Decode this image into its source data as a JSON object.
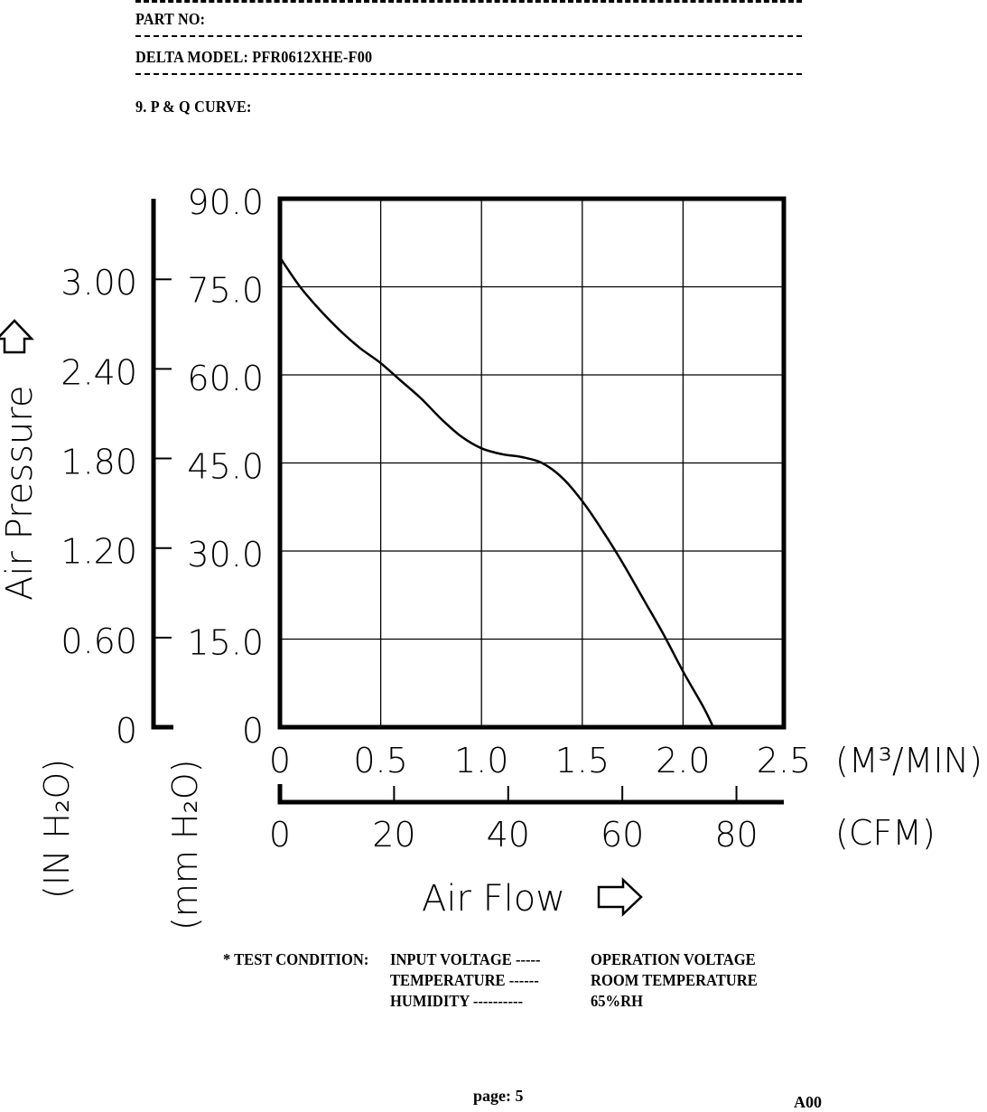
{
  "header": {
    "part_no_label": "PART NO:",
    "model_label": "DELTA MODEL: PFR0612XHE-F00",
    "section_title": "9. P & Q CURVE:"
  },
  "chart_data": {
    "type": "line",
    "title": "",
    "series": [
      {
        "name": "",
        "x": [
          0.0,
          0.1,
          0.2,
          0.3,
          0.4,
          0.5,
          0.6,
          0.7,
          0.8,
          0.9,
          1.0,
          1.1,
          1.2,
          1.3,
          1.4,
          1.5,
          1.6,
          1.7,
          1.8,
          1.9,
          2.0,
          2.1,
          2.15
        ],
        "y": [
          80.0,
          75.0,
          71.0,
          67.5,
          64.5,
          62.0,
          59.0,
          56.0,
          52.5,
          49.5,
          47.5,
          46.5,
          46.0,
          45.0,
          42.5,
          38.5,
          33.5,
          28.0,
          22.0,
          16.0,
          9.5,
          3.5,
          0.0
        ]
      }
    ],
    "x_axis": {
      "label": "Air Flow",
      "unit": "(M³/MIN)",
      "range": [
        0,
        2.5
      ],
      "ticks": [
        "0",
        "0.5",
        "1.0",
        "1.5",
        "2.0",
        "2.5"
      ]
    },
    "x2_axis": {
      "unit": "(CFM)",
      "range": [
        0,
        88.3
      ],
      "ticks": [
        "0",
        "20",
        "40",
        "60",
        "80"
      ],
      "tick_values": [
        0,
        20,
        40,
        60,
        80
      ]
    },
    "y_axis": {
      "label": "Air Pressure",
      "unit": "(mm H₂O)",
      "range": [
        0,
        90
      ],
      "ticks": [
        "0",
        "15.0",
        "30.0",
        "45.0",
        "60.0",
        "75.0",
        "90.0"
      ]
    },
    "y2_axis": {
      "unit": "(IN H₂O)",
      "range": [
        0,
        3.54
      ],
      "ticks": [
        "0",
        "0.60",
        "1.20",
        "1.80",
        "2.40",
        "3.00"
      ],
      "tick_values": [
        0,
        0.6,
        1.2,
        1.8,
        2.4,
        3.0
      ]
    },
    "grid": true,
    "colors": {
      "line": "#000000",
      "frame": "#000000"
    }
  },
  "test_condition": {
    "label": "* TEST CONDITION:",
    "lines": [
      {
        "name": "INPUT VOLTAGE -----",
        "value": "OPERATION VOLTAGE"
      },
      {
        "name": "TEMPERATURE ------",
        "value": "ROOM TEMPERATURE"
      },
      {
        "name": "HUMIDITY ----------",
        "value": "65%RH"
      }
    ]
  },
  "footer": {
    "page": "page: 5",
    "revision": "A00"
  }
}
